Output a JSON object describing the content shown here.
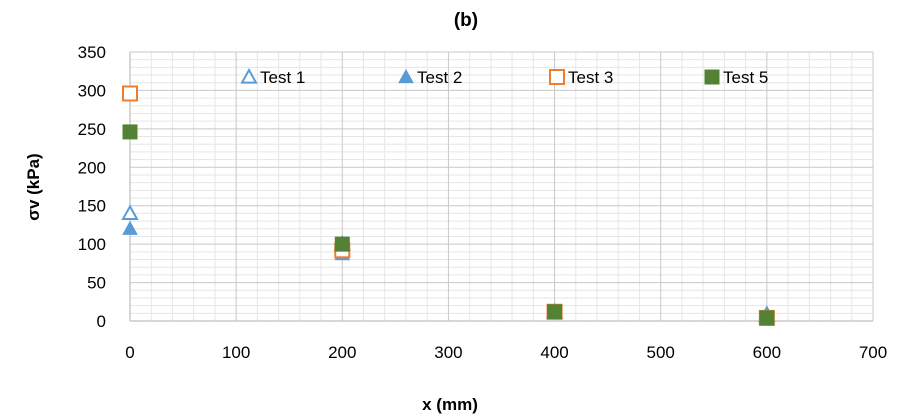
{
  "chart_data": {
    "type": "scatter",
    "title": "(b)",
    "xlabel": "x (mm)",
    "ylabel": "σv (kPa)",
    "xlim": [
      0,
      700
    ],
    "ylim": [
      0,
      350
    ],
    "x_ticks": [
      0,
      100,
      200,
      300,
      400,
      500,
      600,
      700
    ],
    "y_ticks": [
      0,
      50,
      100,
      150,
      200,
      250,
      300,
      350
    ],
    "grid": true,
    "legend_placement": "top",
    "series": [
      {
        "name": "Test 1",
        "marker": "triangle-open",
        "color": "#5b9bd5",
        "points": [
          [
            0,
            140
          ],
          [
            200,
            100
          ],
          [
            400,
            12
          ],
          [
            600,
            7
          ]
        ]
      },
      {
        "name": "Test 2",
        "marker": "triangle-filled",
        "color": "#5b9bd5",
        "points": [
          [
            0,
            120
          ],
          [
            200,
            87
          ],
          [
            400,
            13
          ],
          [
            600,
            10
          ]
        ]
      },
      {
        "name": "Test 3",
        "marker": "square-open",
        "color": "#ed7d31",
        "points": [
          [
            0,
            296
          ],
          [
            200,
            92
          ],
          [
            400,
            12
          ],
          [
            600,
            4
          ]
        ]
      },
      {
        "name": "Test 5",
        "marker": "square-filled",
        "color": "#548235",
        "points": [
          [
            0,
            246
          ],
          [
            200,
            100
          ],
          [
            400,
            12
          ],
          [
            600,
            4
          ]
        ]
      }
    ]
  }
}
